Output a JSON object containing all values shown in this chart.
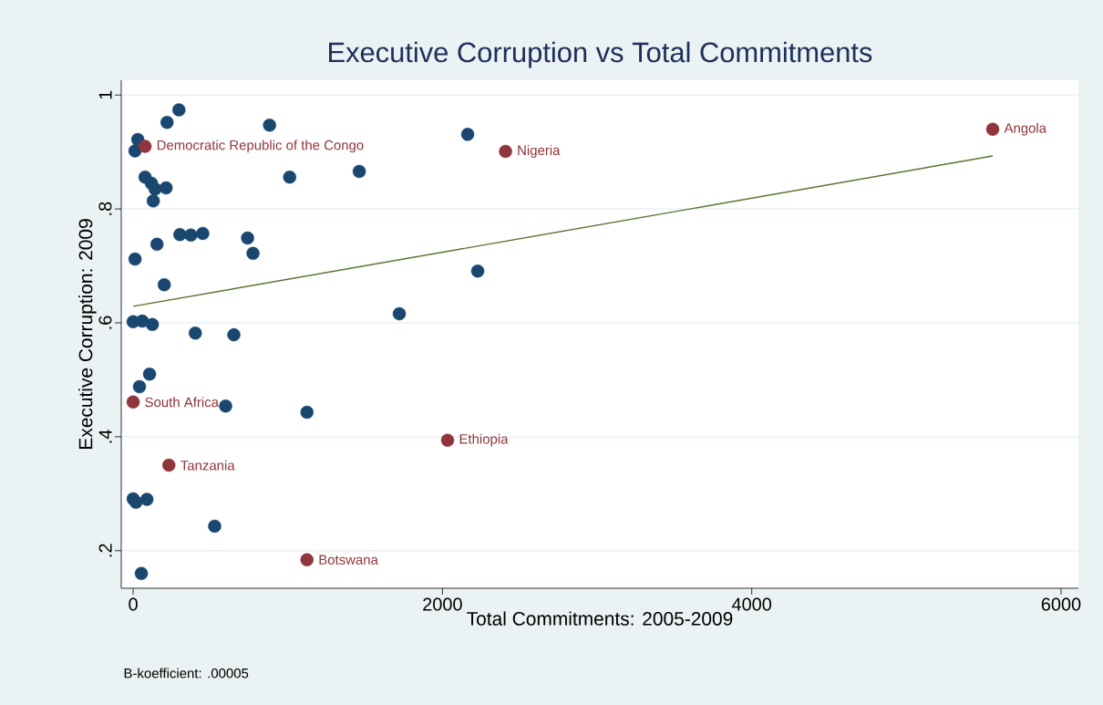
{
  "chart_data": {
    "type": "scatter",
    "title": "Executive Corruption vs Total Commitments",
    "xlabel": "Total Commitments: 2005-2009",
    "ylabel": "Executive Corruption: 2009",
    "xlim": [
      -77,
      6112
    ],
    "ylim": [
      0.134,
      1.026
    ],
    "xticks": [
      0,
      2000,
      4000,
      6000
    ],
    "yticks": [
      {
        "value": 0.2,
        "label": ".2"
      },
      {
        "value": 0.4,
        "label": ".4"
      },
      {
        "value": 0.6,
        "label": ".6"
      },
      {
        "value": 0.8,
        "label": ".8"
      },
      {
        "value": 1,
        "label": "1"
      }
    ],
    "grid": "y",
    "series": [
      {
        "color": "#1a476f",
        "marker": "circle",
        "x": [
          30,
          12,
          219,
          296,
          882,
          2163,
          77,
          118,
          142,
          213,
          130,
          1012,
          1462,
          302,
          373,
          450,
          740,
          775,
          154,
          12,
          201,
          2228,
          1721,
          0,
          59,
          124,
          402,
          651,
          106,
          41,
          598,
          1124,
          0,
          18,
          89,
          527,
          53
        ],
        "values": [
          0.922,
          0.902,
          0.952,
          0.974,
          0.947,
          0.931,
          0.856,
          0.845,
          0.835,
          0.837,
          0.814,
          0.856,
          0.866,
          0.755,
          0.754,
          0.757,
          0.749,
          0.722,
          0.738,
          0.712,
          0.667,
          0.691,
          0.616,
          0.602,
          0.603,
          0.597,
          0.582,
          0.579,
          0.51,
          0.488,
          0.454,
          0.443,
          0.291,
          0.285,
          0.29,
          0.243,
          0.16
        ]
      },
      {
        "color": "#90353b",
        "marker": "circle",
        "x": [
          77,
          0,
          231,
          1124,
          2033,
          2408,
          5558
        ],
        "values": [
          0.91,
          0.461,
          0.35,
          0.184,
          0.394,
          0.901,
          0.94
        ]
      },
      {
        "type": "line",
        "color": "#55752f",
        "marker": "none",
        "x": [
          0,
          5558
        ],
        "values": [
          0.629,
          0.893
        ]
      }
    ],
    "annotations": [
      {
        "text": "Democratic Republic of the Congo",
        "x": 77,
        "y": 0.91
      },
      {
        "text": "South Africa",
        "x": 0,
        "y": 0.461
      },
      {
        "text": "Tanzania",
        "x": 231,
        "y": 0.35
      },
      {
        "text": "Botswana",
        "x": 1124,
        "y": 0.184
      },
      {
        "text": "Ethiopia",
        "x": 2033,
        "y": 0.394
      },
      {
        "text": "Nigeria",
        "x": 2408,
        "y": 0.901
      },
      {
        "text": "Angola",
        "x": 5558,
        "y": 0.94
      },
      "B-koefficient: .00005"
    ]
  }
}
